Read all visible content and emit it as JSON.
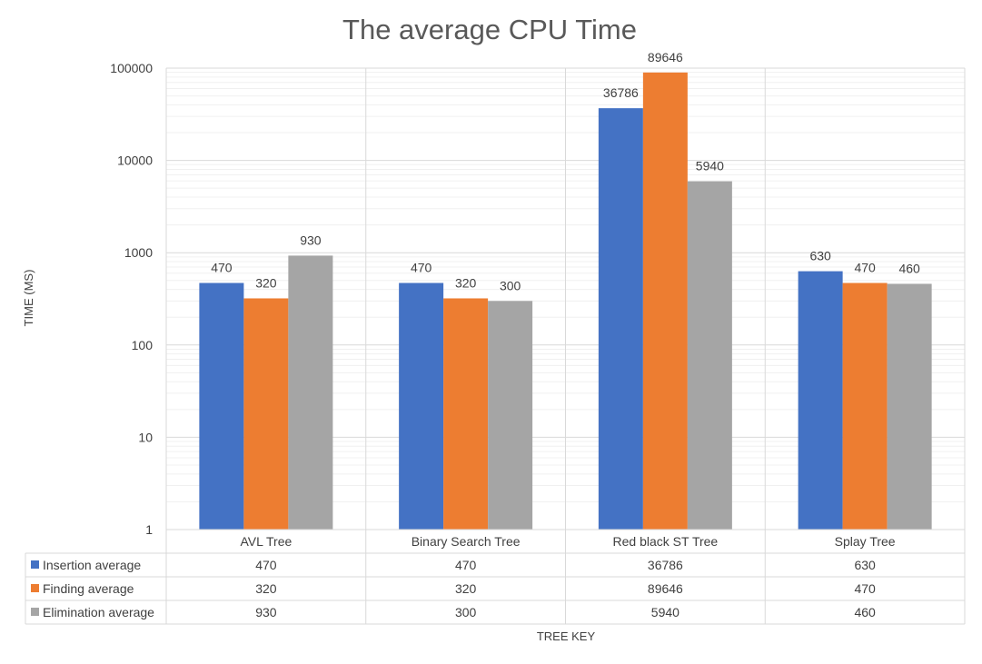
{
  "chart_data": {
    "type": "bar",
    "title": "The average CPU Time",
    "xlabel": "TREE KEY",
    "ylabel": "TIME (MS)",
    "yscale": "log",
    "ylim": [
      1,
      100000
    ],
    "yticks": [
      "1",
      "10",
      "100",
      "1000",
      "10000",
      "100000"
    ],
    "grid": true,
    "legend": "data-table",
    "data_table": true,
    "categories": [
      "AVL Tree",
      "Binary Search Tree",
      "Red black ST Tree",
      "Splay Tree"
    ],
    "series": [
      {
        "name": "Insertion average",
        "color": "#4472c4",
        "values": [
          470,
          470,
          36786,
          630
        ]
      },
      {
        "name": "Finding average",
        "color": "#ed7d31",
        "values": [
          320,
          320,
          89646,
          470
        ]
      },
      {
        "name": "Elimination average",
        "color": "#a5a5a5",
        "values": [
          930,
          300,
          5940,
          460
        ]
      }
    ]
  }
}
